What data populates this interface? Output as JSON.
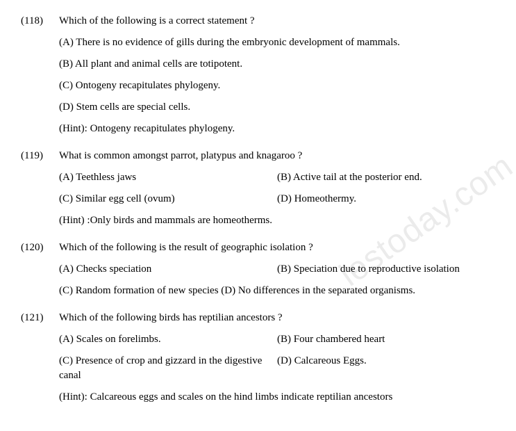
{
  "watermark": "iestoday.com",
  "questions": [
    {
      "number": "(118)",
      "text": "Which of the following is a correct statement ?",
      "options": [
        {
          "label": "(A) There is no evidence of gills during the embryonic development of mammals.",
          "full": true
        },
        {
          "label": "(B) All plant and animal cells are totipotent.",
          "full": true
        },
        {
          "label": "(C) Ontogeny recapitulates phylogeny.",
          "full": true
        },
        {
          "label": "(D) Stem cells are special cells.",
          "full": true
        }
      ],
      "hint": "(Hint): Ontogeny recapitulates phylogeny."
    },
    {
      "number": "(119)",
      "text": "What is common amongst parrot, platypus and knagaroo ?",
      "options": [
        {
          "label": "(A) Teethless jaws",
          "pair": "(B) Active tail at the posterior end."
        },
        {
          "label": "(C) Similar egg cell (ovum)",
          "pair": "(D) Homeothermy."
        }
      ],
      "hint": "(Hint) :Only birds and mammals are homeotherms."
    },
    {
      "number": "(120)",
      "text": "Which of the following is the result of geographic isolation ?",
      "options": [
        {
          "label": "(A) Checks speciation",
          "pair": "(B) Speciation due to reproductive isolation"
        },
        {
          "label": "(C) Random formation of new species (D) No differences in the separated organisms.",
          "full": true
        }
      ],
      "hint": null
    },
    {
      "number": "(121)",
      "text": "Which of the following birds has reptilian ancestors ?",
      "options": [
        {
          "label": "(A) Scales on forelimbs.",
          "pair": "(B) Four chambered heart"
        },
        {
          "label": "(C) Presence of crop and gizzard in the digestive canal",
          "pair": "(D) Calcareous Eggs."
        }
      ],
      "hint": "(Hint): Calcareous eggs and scales on the hind limbs indicate reptilian ancestors"
    }
  ]
}
